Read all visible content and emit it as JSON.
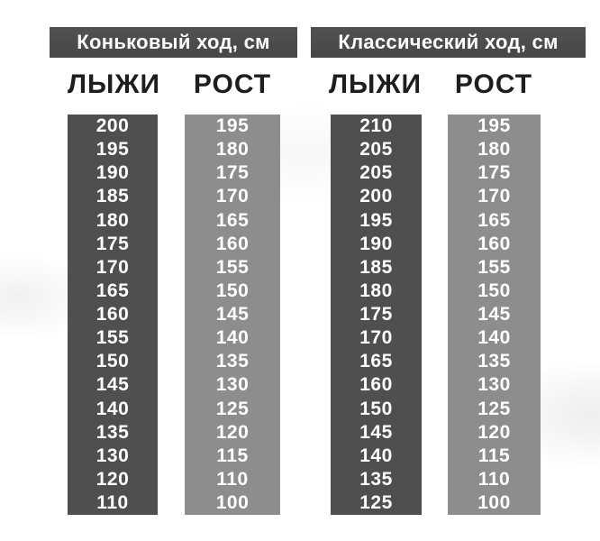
{
  "colors": {
    "header_band_bg": "#4b4b4b",
    "ski_column_bg": "#4f4f4f",
    "height_column_bg": "#8d8d8d",
    "cell_text": "#ffffff",
    "column_header_text": "#1e1e1e",
    "page_background": "#ffffff"
  },
  "chart_data": [
    {
      "type": "table",
      "title": "Коньковый ход, см",
      "columns": [
        "ЛЫЖИ",
        "РОСТ"
      ],
      "rows": [
        [
          200,
          195
        ],
        [
          195,
          180
        ],
        [
          190,
          175
        ],
        [
          185,
          170
        ],
        [
          180,
          165
        ],
        [
          175,
          160
        ],
        [
          170,
          155
        ],
        [
          165,
          150
        ],
        [
          160,
          145
        ],
        [
          155,
          140
        ],
        [
          150,
          135
        ],
        [
          145,
          130
        ],
        [
          140,
          125
        ],
        [
          135,
          120
        ],
        [
          130,
          115
        ],
        [
          120,
          110
        ],
        [
          110,
          100
        ]
      ]
    },
    {
      "type": "table",
      "title": "Классический ход, см",
      "columns": [
        "ЛЫЖИ",
        "РОСТ"
      ],
      "rows": [
        [
          210,
          195
        ],
        [
          205,
          180
        ],
        [
          205,
          175
        ],
        [
          200,
          170
        ],
        [
          195,
          165
        ],
        [
          190,
          160
        ],
        [
          185,
          155
        ],
        [
          180,
          150
        ],
        [
          175,
          145
        ],
        [
          170,
          140
        ],
        [
          165,
          135
        ],
        [
          160,
          130
        ],
        [
          150,
          125
        ],
        [
          145,
          120
        ],
        [
          140,
          115
        ],
        [
          135,
          110
        ],
        [
          125,
          100
        ]
      ]
    }
  ]
}
